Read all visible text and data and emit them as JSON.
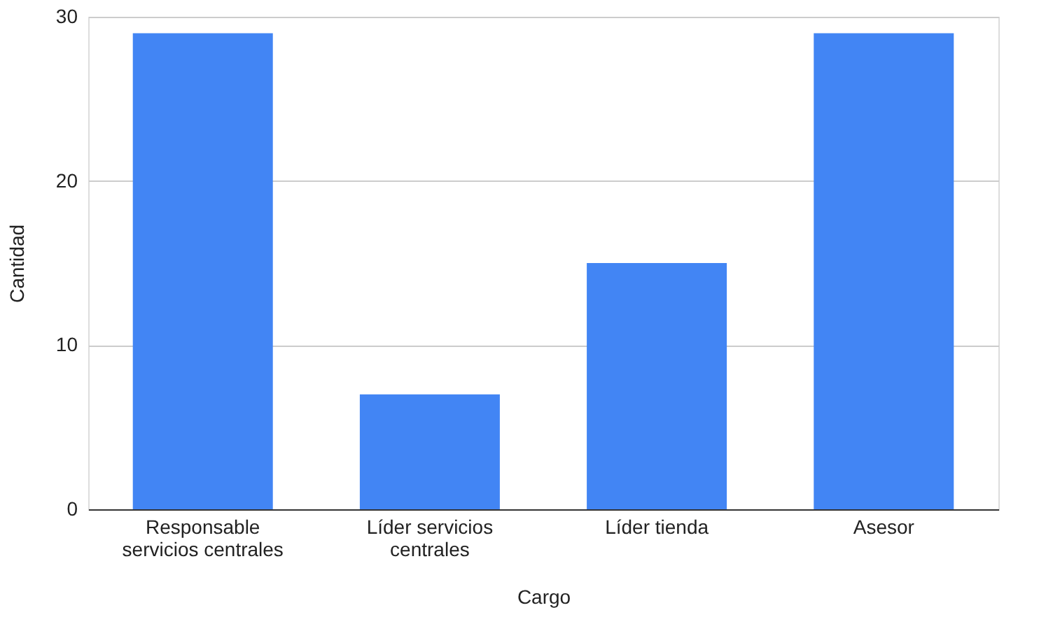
{
  "chart_data": {
    "type": "bar",
    "xlabel": "Cargo",
    "ylabel": "Cantidad",
    "categories": [
      "Responsable servicios centrales",
      "Líder servicios centrales",
      "Líder tienda",
      "Asesor"
    ],
    "values": [
      29,
      7,
      15,
      29
    ],
    "color": "#4285f4",
    "ylim": [
      0,
      30
    ],
    "yticks": [
      0,
      10,
      20,
      30
    ],
    "grid": "y"
  }
}
